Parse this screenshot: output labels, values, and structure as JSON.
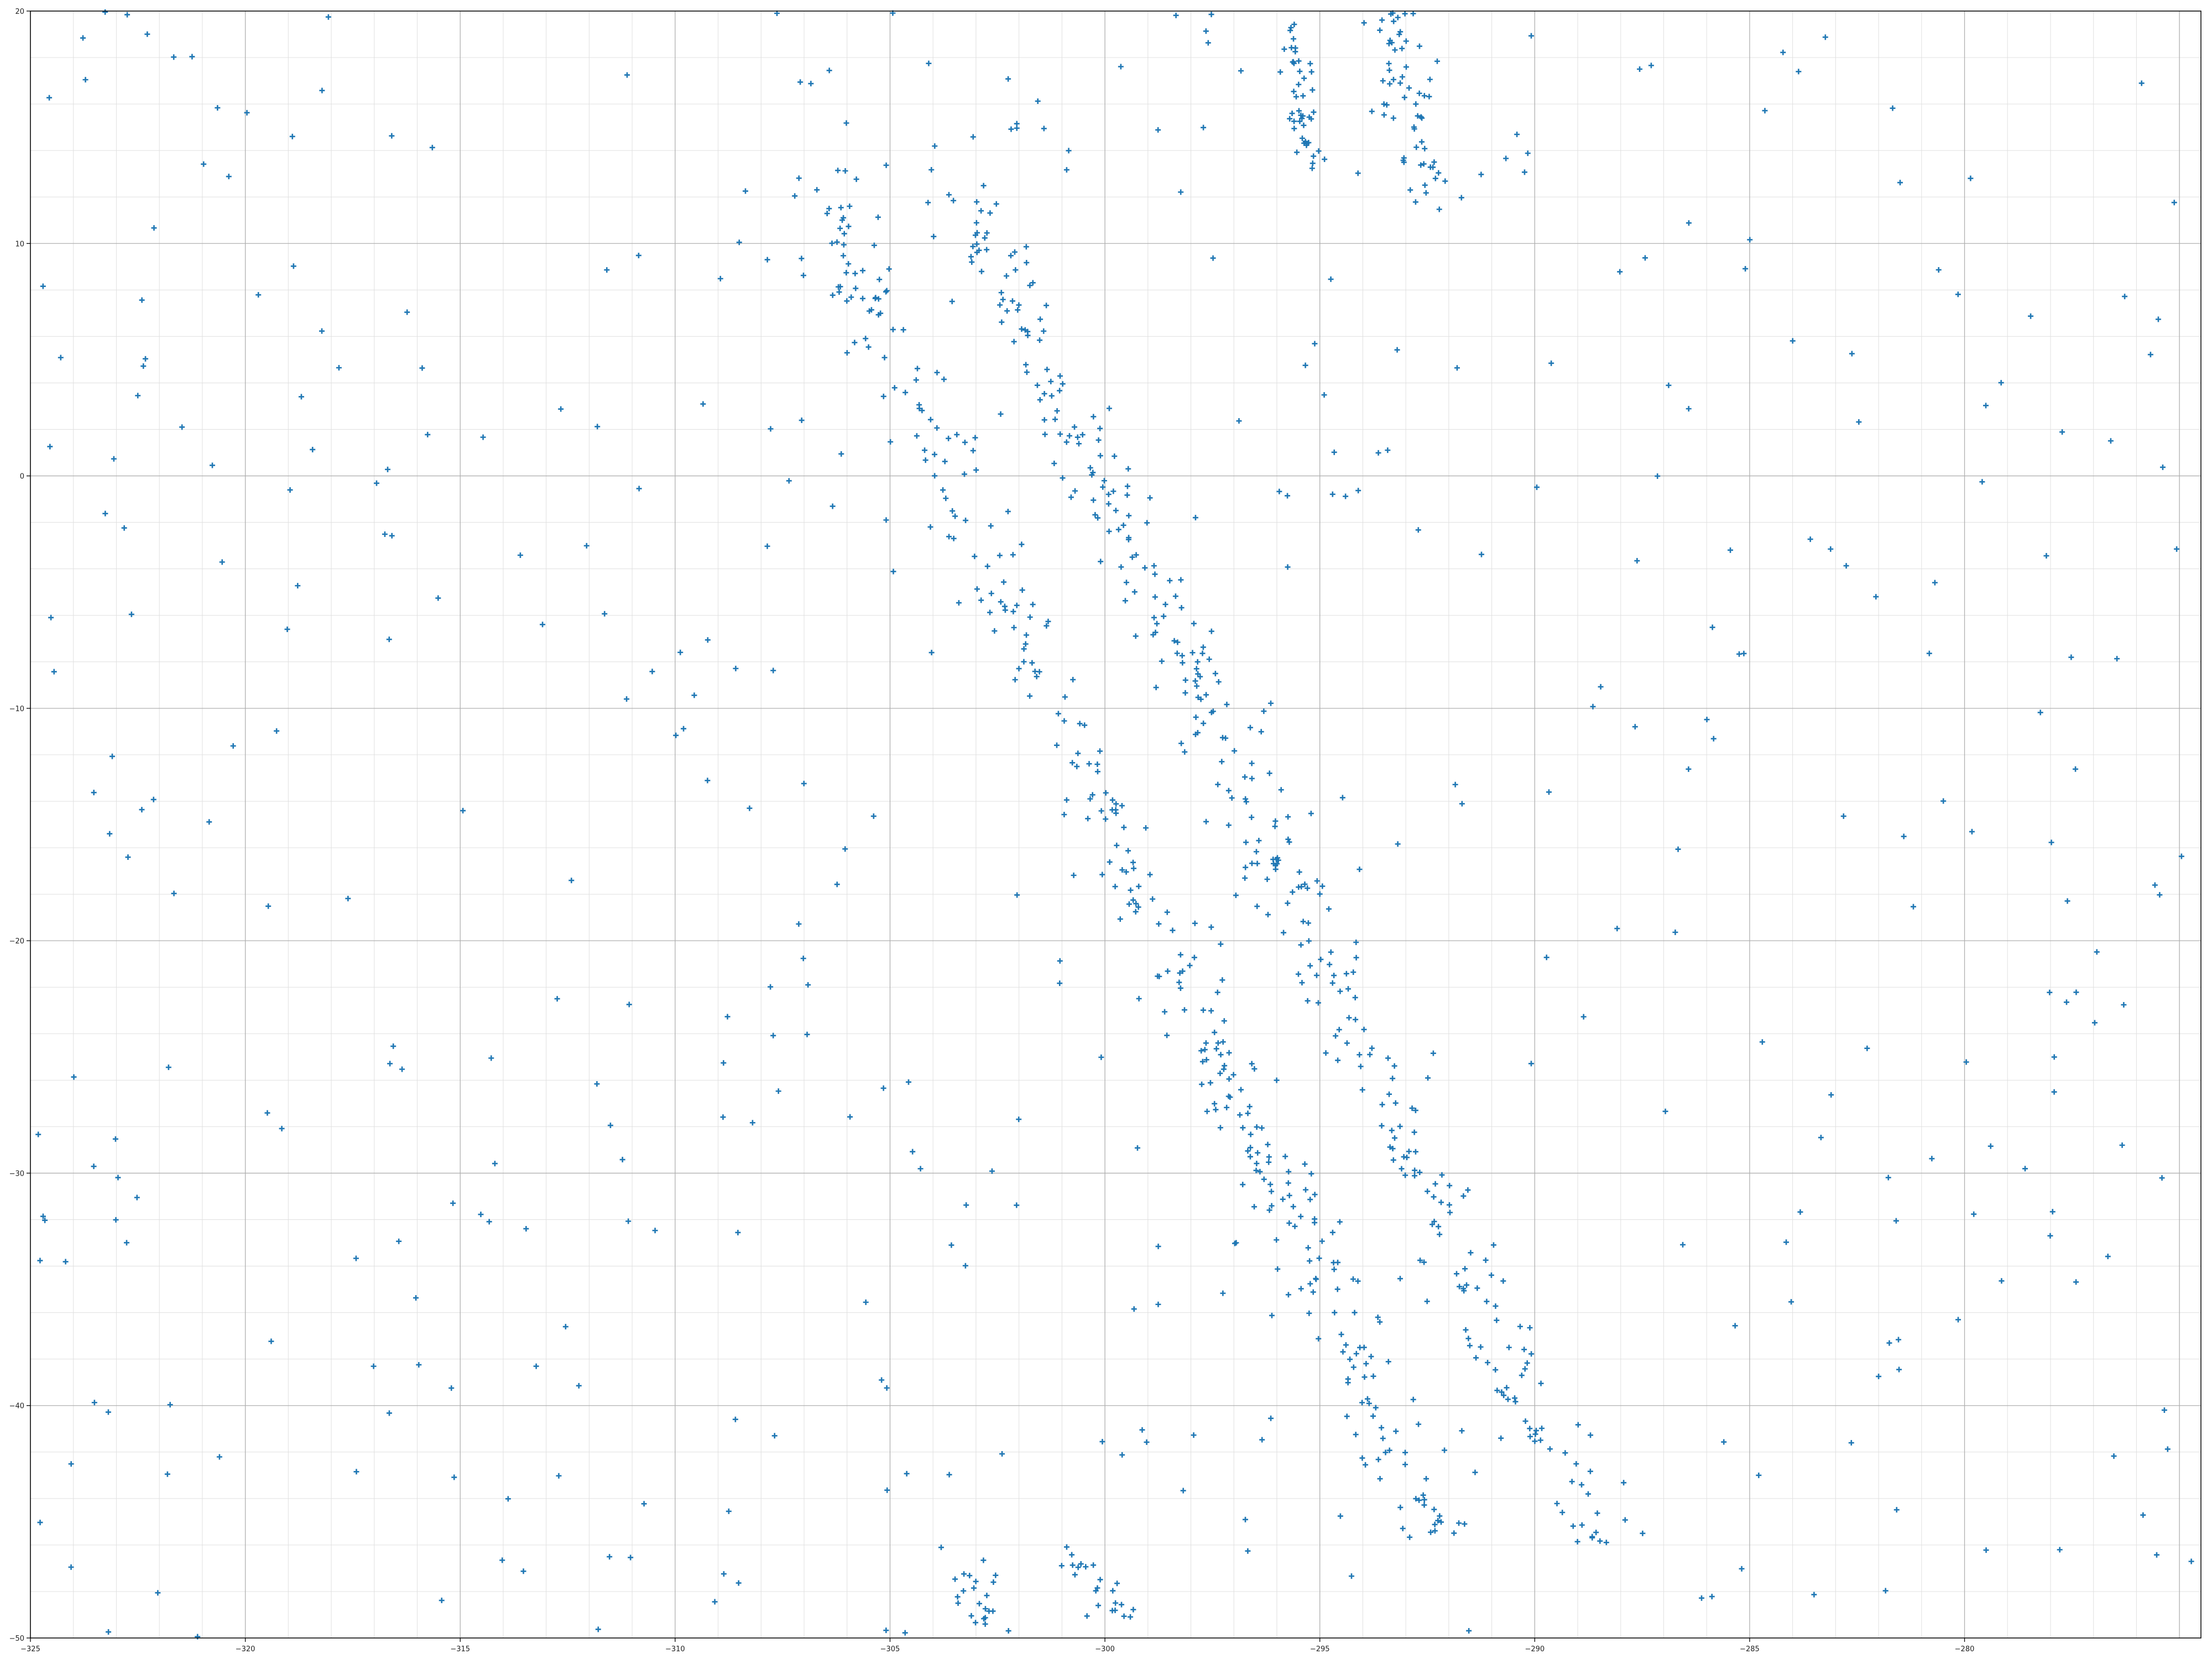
{
  "colors": {
    "background": "#ffffff",
    "marker": "#1f77b4",
    "grid_major": "#b0b0b0",
    "grid_minor": "#e0e0e0",
    "axis": "#000000"
  },
  "chart_data": {
    "type": "scatter",
    "title": "",
    "xlabel": "",
    "ylabel": "",
    "xlim": [
      -325,
      -274.5
    ],
    "ylim": [
      -50,
      20
    ],
    "grid": true,
    "minor_grid": true,
    "legend": "none",
    "marker": "+",
    "x_ticks": [
      -325,
      -320,
      -315,
      -310,
      -305,
      -300,
      -295,
      -290,
      -285,
      -280
    ],
    "x_tick_labels": [
      "−325",
      "−320",
      "−315",
      "−310",
      "−305",
      "−300",
      "−295",
      "−290",
      "−285",
      "−280"
    ],
    "y_ticks": [
      20,
      10,
      0,
      -10,
      -20,
      -30,
      -40,
      -50
    ],
    "y_tick_labels": [
      "20",
      "10",
      "0",
      "−10",
      "−20",
      "−30",
      "−40",
      "−50"
    ],
    "features": [
      {
        "kind": "band",
        "from": [
          -306.8,
          13.0
        ],
        "to": [
          -292.2,
          -46.0
        ],
        "count": 330,
        "spread": 0.45
      },
      {
        "kind": "band",
        "from": [
          -303.8,
          13.6
        ],
        "to": [
          -288.5,
          -46.0
        ],
        "count": 340,
        "spread": 0.45
      },
      {
        "kind": "band",
        "from": [
          -295.6,
          19.5
        ],
        "to": [
          -295.3,
          13.2
        ],
        "count": 45,
        "spread": 0.18
      },
      {
        "kind": "band",
        "from": [
          -293.2,
          19.8
        ],
        "to": [
          -292.5,
          11.8
        ],
        "count": 60,
        "spread": 0.3
      },
      {
        "kind": "band",
        "from": [
          -303.3,
          -46.8
        ],
        "to": [
          -302.6,
          -49.8
        ],
        "count": 22,
        "spread": 0.3
      },
      {
        "kind": "band",
        "from": [
          -300.8,
          -46.2
        ],
        "to": [
          -299.3,
          -49.8
        ],
        "count": 22,
        "spread": 0.3
      },
      {
        "kind": "background",
        "count": 480,
        "xlim": [
          -325,
          -274.5
        ],
        "ylim": [
          -50,
          20
        ]
      }
    ]
  }
}
